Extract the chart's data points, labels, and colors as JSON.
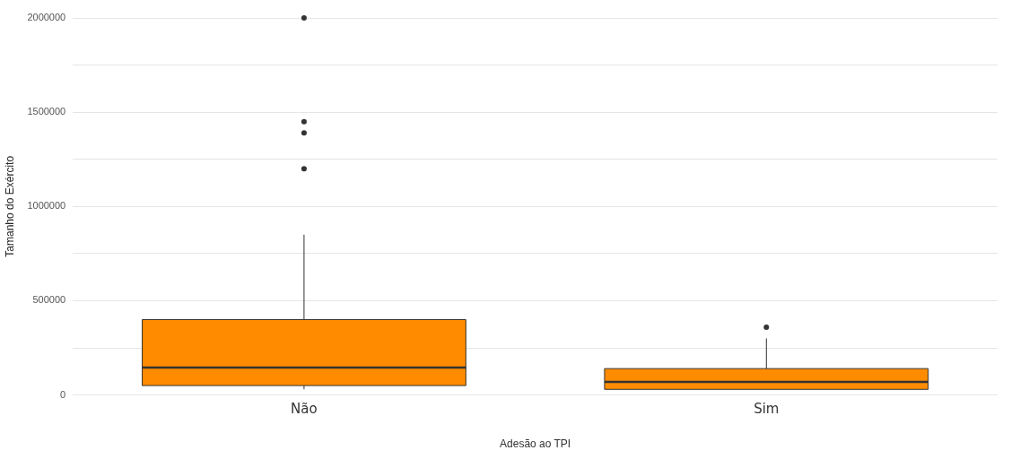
{
  "chart_data": {
    "type": "box",
    "xlabel": "Adesão ao TPI",
    "ylabel": "Tamanho do Exército",
    "categories": [
      "Não",
      "Sim"
    ],
    "color": "#ff8c00",
    "boxes": [
      {
        "low": 30000,
        "q1": 50000,
        "median": 145000,
        "q3": 400000,
        "high": 850000,
        "outliers": [
          1200000,
          1390000,
          1450000,
          2000000
        ]
      },
      {
        "low": 30000,
        "q1": 30000,
        "median": 70000,
        "q3": 140000,
        "high": 300000,
        "outliers": [
          360000
        ]
      }
    ],
    "ylim": [
      0,
      2000000
    ],
    "yticks": [
      0,
      {
        "value": 250000,
        "label": null
      },
      500000,
      {
        "value": 750000,
        "label": null
      },
      1000000,
      {
        "value": 1250000,
        "label": null
      },
      1500000,
      {
        "value": 1750000,
        "label": null
      },
      2000000
    ],
    "grid": "y"
  }
}
